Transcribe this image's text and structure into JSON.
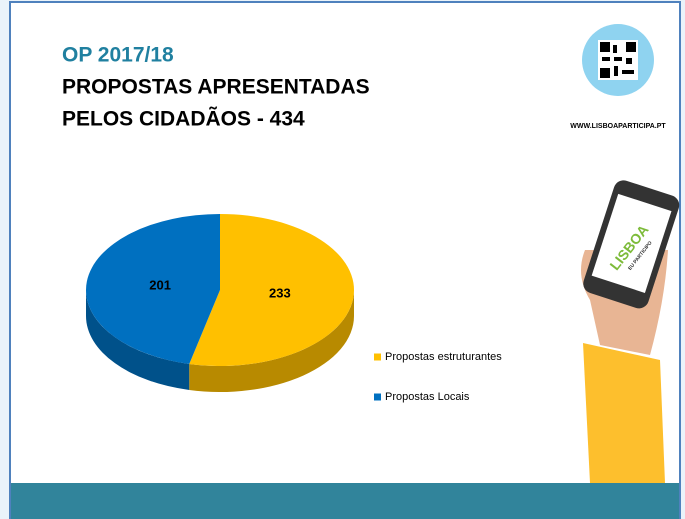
{
  "chart_data": {
    "type": "pie3d",
    "title": "OP 2017/18",
    "subtitle": [
      "PROPOSTAS APRESENTADAS",
      "PELOS CIDADÃOS - 434"
    ],
    "categories": [
      "Propostas estruturantes",
      "Propostas Locais"
    ],
    "values": [
      233,
      201
    ],
    "colors": [
      "#ffc000",
      "#0070c0"
    ],
    "legend": "right"
  },
  "website": "WWW.LISBOAPARTICIPA.PT",
  "phone_logo": [
    "LISBOA",
    "EU PARTICIPO"
  ]
}
